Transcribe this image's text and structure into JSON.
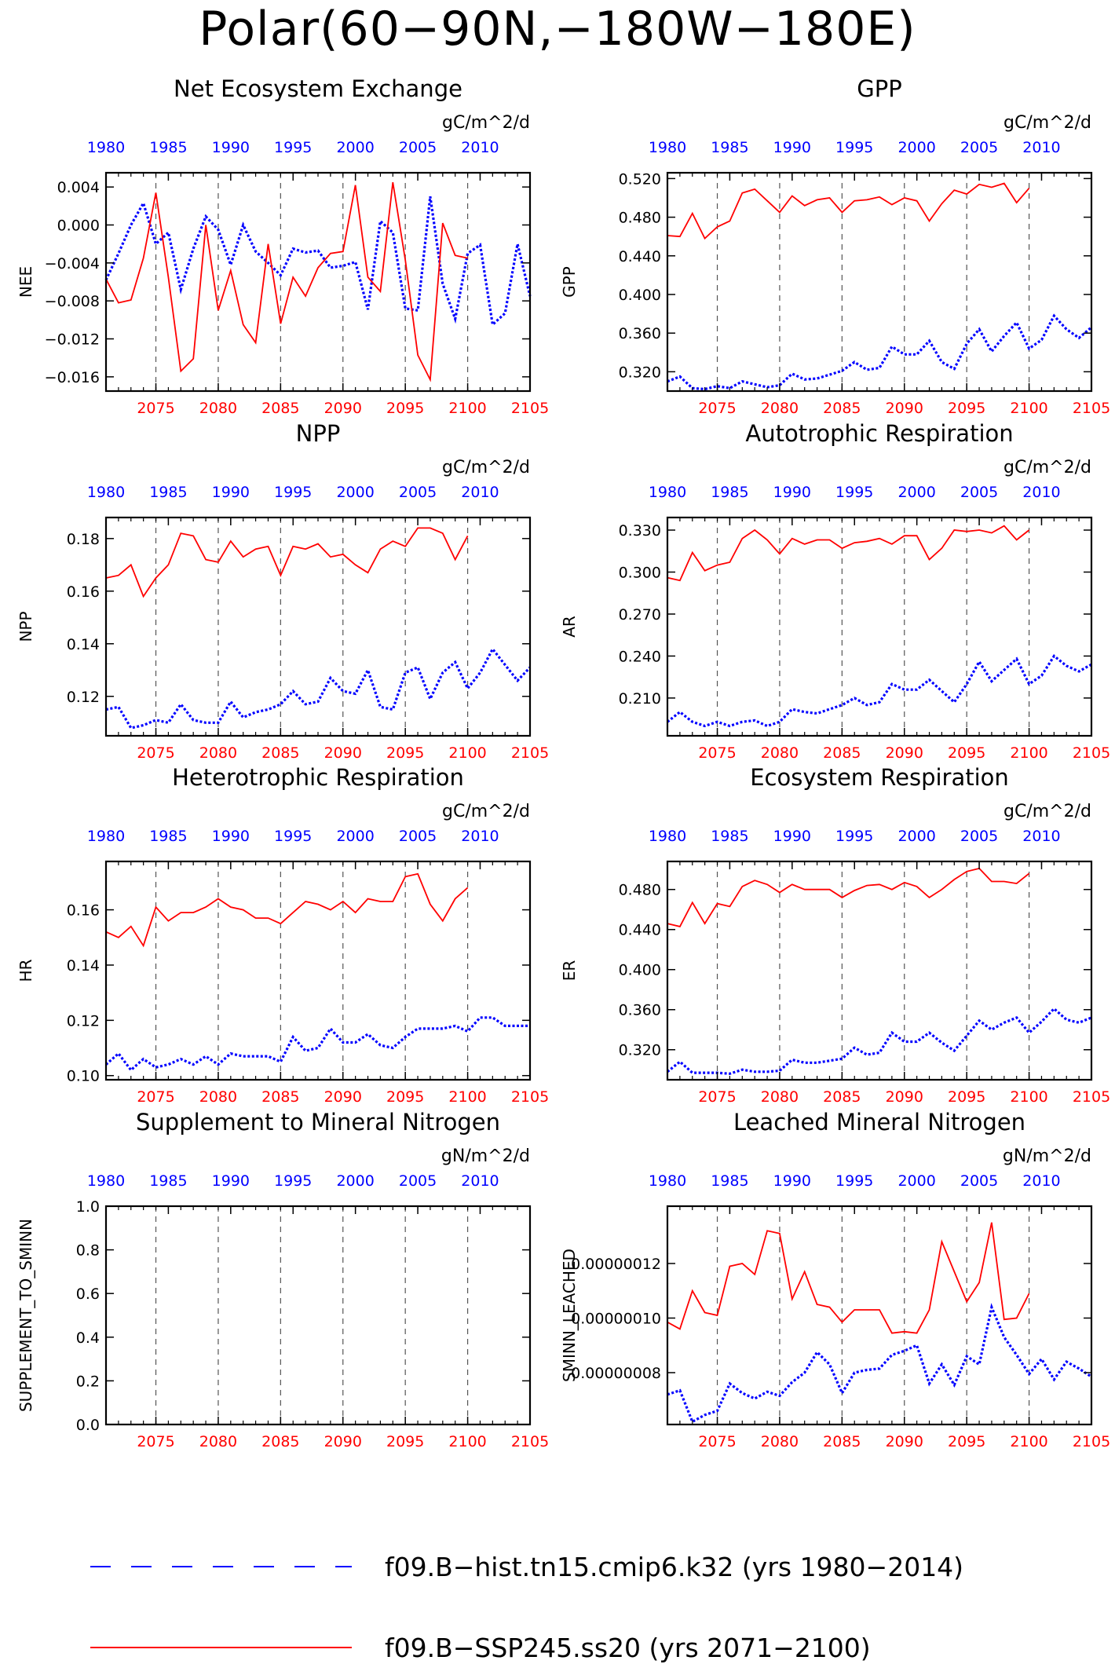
{
  "page": {
    "title": "Polar(60−90N,−180W−180E)"
  },
  "legend": [
    {
      "label": "f09.B−hist.tn15.cmip6.k32 (yrs 1980−2014)",
      "color": "#0000ff",
      "style": "dashed"
    },
    {
      "label": "f09.B−SSP245.ss20 (yrs 2071−2100)",
      "color": "#ff0000",
      "style": "solid"
    }
  ],
  "chart_data": [
    {
      "type": "line",
      "title": "Net Ecosystem Exchange",
      "units": "gC/m^2/d",
      "ylabel": "NEE",
      "ylim": [
        -0.0175,
        0.0055
      ],
      "yticks": [
        0.004,
        0.0,
        -0.004,
        -0.008,
        -0.012,
        -0.016
      ],
      "ytick_labels": [
        "0.004",
        "0.000",
        "−0.004",
        "−0.008",
        "−0.012",
        "−0.016"
      ],
      "series": [
        {
          "color": "#0000ff",
          "style": "dashed",
          "x_axis": "top",
          "x_start": 1980,
          "values": [
            -0.0058,
            -0.003,
            0.0,
            0.0023,
            -0.002,
            -0.0008,
            -0.0068,
            -0.0025,
            0.0009,
            -0.0005,
            -0.0042,
            0.0,
            -0.0028,
            -0.004,
            -0.0053,
            -0.0025,
            -0.0029,
            -0.0027,
            -0.0045,
            -0.0043,
            -0.0039,
            -0.0089,
            0.0004,
            -0.0008,
            -0.0088,
            -0.009,
            0.003,
            -0.0062,
            -0.0099,
            -0.003,
            -0.0021,
            -0.0105,
            -0.0093,
            -0.002,
            -0.0075
          ]
        },
        {
          "color": "#ff0000",
          "style": "solid",
          "x_axis": "bottom",
          "x_start": 2071,
          "values": [
            -0.0057,
            -0.0082,
            -0.0079,
            -0.0035,
            0.0034,
            -0.0055,
            -0.0154,
            -0.0141,
            0.0,
            -0.009,
            -0.0048,
            -0.0105,
            -0.0124,
            -0.002,
            -0.0104,
            -0.0055,
            -0.0075,
            -0.0045,
            -0.003,
            -0.0028,
            0.0042,
            -0.0055,
            -0.007,
            0.0045,
            -0.0037,
            -0.0137,
            -0.0163,
            0.0002,
            -0.0032,
            -0.0035
          ]
        }
      ]
    },
    {
      "type": "line",
      "title": "GPP",
      "units": "gC/m^2/d",
      "ylabel": "GPP",
      "ylim": [
        0.3,
        0.526
      ],
      "yticks": [
        0.32,
        0.36,
        0.4,
        0.44,
        0.48,
        0.52
      ],
      "ytick_labels": [
        "0.320",
        "0.360",
        "0.400",
        "0.440",
        "0.480",
        "0.520"
      ],
      "series": [
        {
          "color": "#0000ff",
          "style": "dashed",
          "x_axis": "top",
          "x_start": 1980,
          "values": [
            0.31,
            0.315,
            0.303,
            0.302,
            0.305,
            0.303,
            0.31,
            0.307,
            0.304,
            0.306,
            0.318,
            0.312,
            0.313,
            0.317,
            0.321,
            0.33,
            0.322,
            0.324,
            0.346,
            0.338,
            0.338,
            0.352,
            0.33,
            0.323,
            0.349,
            0.364,
            0.341,
            0.357,
            0.371,
            0.344,
            0.353,
            0.378,
            0.364,
            0.355,
            0.366
          ]
        },
        {
          "color": "#ff0000",
          "style": "solid",
          "x_axis": "bottom",
          "x_start": 2071,
          "values": [
            0.461,
            0.46,
            0.484,
            0.458,
            0.47,
            0.476,
            0.505,
            0.509,
            0.497,
            0.485,
            0.502,
            0.492,
            0.498,
            0.5,
            0.485,
            0.497,
            0.498,
            0.501,
            0.493,
            0.5,
            0.497,
            0.476,
            0.494,
            0.508,
            0.504,
            0.514,
            0.511,
            0.515,
            0.495,
            0.51
          ]
        }
      ]
    },
    {
      "type": "line",
      "title": "NPP",
      "units": "gC/m^2/d",
      "ylabel": "NPP",
      "ylim": [
        0.105,
        0.188
      ],
      "yticks": [
        0.12,
        0.14,
        0.16,
        0.18
      ],
      "ytick_labels": [
        "0.12",
        "0.14",
        "0.16",
        "0.18"
      ],
      "series": [
        {
          "color": "#0000ff",
          "style": "dashed",
          "x_axis": "top",
          "x_start": 1980,
          "values": [
            0.115,
            0.116,
            0.108,
            0.109,
            0.111,
            0.11,
            0.117,
            0.111,
            0.11,
            0.11,
            0.118,
            0.112,
            0.114,
            0.115,
            0.117,
            0.122,
            0.117,
            0.118,
            0.127,
            0.122,
            0.121,
            0.13,
            0.116,
            0.115,
            0.129,
            0.131,
            0.119,
            0.129,
            0.133,
            0.123,
            0.129,
            0.138,
            0.132,
            0.126,
            0.131
          ]
        },
        {
          "color": "#ff0000",
          "style": "solid",
          "x_axis": "bottom",
          "x_start": 2071,
          "values": [
            0.165,
            0.166,
            0.17,
            0.158,
            0.165,
            0.17,
            0.182,
            0.181,
            0.172,
            0.171,
            0.179,
            0.173,
            0.176,
            0.177,
            0.166,
            0.177,
            0.176,
            0.178,
            0.173,
            0.174,
            0.17,
            0.167,
            0.176,
            0.179,
            0.177,
            0.184,
            0.184,
            0.182,
            0.172,
            0.181
          ]
        }
      ]
    },
    {
      "type": "line",
      "title": "Autotrophic Respiration",
      "units": "gC/m^2/d",
      "ylabel": "AR",
      "ylim": [
        0.183,
        0.339
      ],
      "yticks": [
        0.21,
        0.24,
        0.27,
        0.3,
        0.33
      ],
      "ytick_labels": [
        "0.210",
        "0.240",
        "0.270",
        "0.300",
        "0.330"
      ],
      "series": [
        {
          "color": "#0000ff",
          "style": "dashed",
          "x_axis": "top",
          "x_start": 1980,
          "values": [
            0.193,
            0.2,
            0.193,
            0.19,
            0.193,
            0.19,
            0.193,
            0.194,
            0.19,
            0.193,
            0.202,
            0.2,
            0.199,
            0.202,
            0.205,
            0.21,
            0.205,
            0.207,
            0.22,
            0.216,
            0.216,
            0.223,
            0.215,
            0.207,
            0.22,
            0.236,
            0.222,
            0.23,
            0.238,
            0.22,
            0.226,
            0.24,
            0.233,
            0.229,
            0.234
          ]
        },
        {
          "color": "#ff0000",
          "style": "solid",
          "x_axis": "bottom",
          "x_start": 2071,
          "values": [
            0.296,
            0.294,
            0.314,
            0.301,
            0.305,
            0.307,
            0.324,
            0.33,
            0.323,
            0.313,
            0.324,
            0.32,
            0.323,
            0.323,
            0.317,
            0.321,
            0.322,
            0.324,
            0.32,
            0.326,
            0.326,
            0.309,
            0.317,
            0.33,
            0.329,
            0.33,
            0.328,
            0.333,
            0.323,
            0.33
          ]
        }
      ]
    },
    {
      "type": "line",
      "title": "Heterotrophic Respiration",
      "units": "gC/m^2/d",
      "ylabel": "HR",
      "ylim": [
        0.0985,
        0.1775
      ],
      "yticks": [
        0.1,
        0.12,
        0.14,
        0.16
      ],
      "ytick_labels": [
        "0.10",
        "0.12",
        "0.14",
        "0.16"
      ],
      "series": [
        {
          "color": "#0000ff",
          "style": "dashed",
          "x_axis": "top",
          "x_start": 1980,
          "values": [
            0.104,
            0.108,
            0.102,
            0.106,
            0.103,
            0.104,
            0.106,
            0.104,
            0.107,
            0.104,
            0.108,
            0.107,
            0.107,
            0.107,
            0.105,
            0.114,
            0.109,
            0.11,
            0.117,
            0.112,
            0.112,
            0.115,
            0.111,
            0.11,
            0.114,
            0.117,
            0.117,
            0.117,
            0.118,
            0.116,
            0.121,
            0.121,
            0.118,
            0.118,
            0.118
          ]
        },
        {
          "color": "#ff0000",
          "style": "solid",
          "x_axis": "bottom",
          "x_start": 2071,
          "values": [
            0.152,
            0.15,
            0.154,
            0.147,
            0.161,
            0.156,
            0.159,
            0.159,
            0.161,
            0.164,
            0.161,
            0.16,
            0.157,
            0.157,
            0.155,
            0.159,
            0.163,
            0.162,
            0.16,
            0.163,
            0.159,
            0.164,
            0.163,
            0.163,
            0.172,
            0.173,
            0.162,
            0.156,
            0.164,
            0.168
          ]
        }
      ]
    },
    {
      "type": "line",
      "title": "Ecosystem Respiration",
      "units": "gC/m^2/d",
      "ylabel": "ER",
      "ylim": [
        0.29,
        0.508
      ],
      "yticks": [
        0.32,
        0.36,
        0.4,
        0.44,
        0.48
      ],
      "ytick_labels": [
        "0.320",
        "0.360",
        "0.400",
        "0.440",
        "0.480"
      ],
      "series": [
        {
          "color": "#0000ff",
          "style": "dashed",
          "x_axis": "top",
          "x_start": 1980,
          "values": [
            0.298,
            0.308,
            0.297,
            0.297,
            0.297,
            0.296,
            0.3,
            0.298,
            0.298,
            0.299,
            0.31,
            0.307,
            0.307,
            0.309,
            0.311,
            0.322,
            0.315,
            0.317,
            0.337,
            0.328,
            0.328,
            0.337,
            0.327,
            0.319,
            0.334,
            0.349,
            0.34,
            0.347,
            0.352,
            0.337,
            0.348,
            0.361,
            0.35,
            0.347,
            0.352
          ]
        },
        {
          "color": "#ff0000",
          "style": "solid",
          "x_axis": "bottom",
          "x_start": 2071,
          "values": [
            0.446,
            0.443,
            0.467,
            0.446,
            0.466,
            0.463,
            0.483,
            0.489,
            0.485,
            0.477,
            0.485,
            0.48,
            0.48,
            0.48,
            0.472,
            0.479,
            0.484,
            0.485,
            0.48,
            0.487,
            0.483,
            0.472,
            0.48,
            0.49,
            0.498,
            0.501,
            0.488,
            0.488,
            0.486,
            0.496
          ]
        }
      ]
    },
    {
      "type": "line",
      "title": "Supplement to Mineral Nitrogen",
      "units": "gN/m^2/d",
      "ylabel": "SUPPLEMENT_TO_SMINN",
      "ylim": [
        0.0,
        1.0
      ],
      "yticks": [
        0.0,
        0.2,
        0.4,
        0.6,
        0.8,
        1.0
      ],
      "ytick_labels": [
        "0.0",
        "0.2",
        "0.4",
        "0.6",
        "0.8",
        "1.0"
      ],
      "series": []
    },
    {
      "type": "line",
      "title": "Leached Mineral Nitrogen",
      "units": "gN/m^2/d",
      "ylabel": "SMINN_LEACHED",
      "ylim": [
        6.1e-08,
        1.41e-07
      ],
      "yticks": [
        8e-08,
        1e-07,
        1.2e-07
      ],
      "ytick_labels": [
        "0.00000008",
        "0.00000010",
        "0.00000012"
      ],
      "series": [
        {
          "color": "#0000ff",
          "style": "dashed",
          "x_axis": "top",
          "x_start": 1980,
          "values": [
            7.2e-08,
            7.35e-08,
            6.2e-08,
            6.45e-08,
            6.6e-08,
            7.6e-08,
            7.25e-08,
            7.05e-08,
            7.3e-08,
            7.15e-08,
            7.65e-08,
            8e-08,
            8.75e-08,
            8.3e-08,
            7.25e-08,
            8e-08,
            8.1e-08,
            8.15e-08,
            8.65e-08,
            8.8e-08,
            9e-08,
            7.6e-08,
            8.3e-08,
            7.55e-08,
            8.6e-08,
            8.3e-08,
            1.04e-07,
            9.3e-08,
            8.65e-08,
            7.95e-08,
            8.5e-08,
            7.75e-08,
            8.4e-08,
            8.15e-08,
            7.85e-08
          ]
        },
        {
          "color": "#ff0000",
          "style": "solid",
          "x_axis": "bottom",
          "x_start": 2071,
          "values": [
            9.85e-08,
            9.6e-08,
            1.1e-07,
            1.02e-07,
            1.01e-07,
            1.19e-07,
            1.2e-07,
            1.16e-07,
            1.32e-07,
            1.31e-07,
            1.07e-07,
            1.17e-07,
            1.05e-07,
            1.04e-07,
            9.85e-08,
            1.03e-07,
            1.03e-07,
            1.03e-07,
            9.45e-08,
            9.5e-08,
            9.45e-08,
            1.03e-07,
            1.28e-07,
            1.17e-07,
            1.06e-07,
            1.13e-07,
            1.35e-07,
            9.95e-08,
            1e-07,
            1.09e-07
          ]
        }
      ]
    }
  ],
  "axes": {
    "top_ticks": [
      1980,
      1985,
      1990,
      1995,
      2000,
      2005,
      2010
    ],
    "top_color": "#0000ff",
    "top_year_start": 1980,
    "bottom_ticks": [
      2075,
      2080,
      2085,
      2090,
      2095,
      2100,
      2105
    ],
    "bottom_color": "#ff0000",
    "bottom_year_start": 2071,
    "n_points_span": 34
  }
}
